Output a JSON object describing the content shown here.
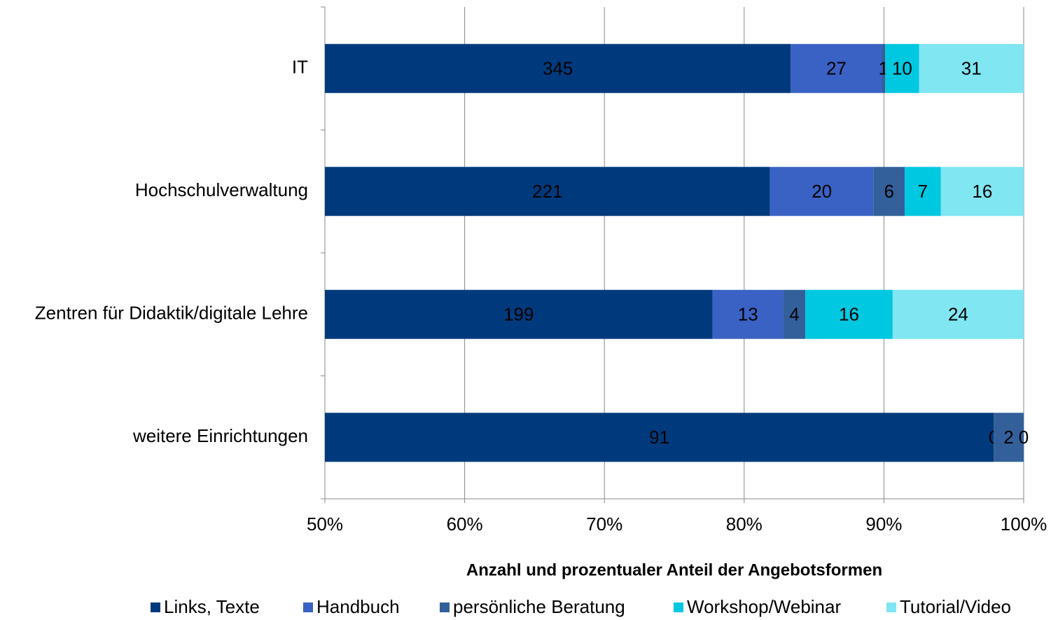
{
  "chart_data": {
    "type": "bar",
    "orientation": "horizontal",
    "stack": "percent",
    "x_label": "Anzahl und prozentualer Anteil der Angebotsformen",
    "categories": [
      "IT",
      "Hochschulverwaltung",
      "Zentren für Didaktik/digitale Lehre",
      "weitere Einrichtungen"
    ],
    "series": [
      {
        "name": "Links, Texte",
        "color": "#003a7d",
        "values": [
          345,
          221,
          199,
          91
        ]
      },
      {
        "name": "Handbuch",
        "color": "#3a62c4",
        "values": [
          27,
          20,
          13,
          0
        ]
      },
      {
        "name": "persönliche Beratung",
        "color": "#33609a",
        "values": [
          1,
          6,
          4,
          2
        ]
      },
      {
        "name": "Workshop/Webinar",
        "color": "#00c8e0",
        "values": [
          10,
          7,
          16,
          0
        ]
      },
      {
        "name": "Tutorial/Video",
        "color": "#7fe6f2",
        "values": [
          31,
          16,
          24,
          null
        ]
      }
    ],
    "xlim": [
      50,
      100
    ],
    "xticks": [
      {
        "value": 50,
        "label": "50%"
      },
      {
        "value": 60,
        "label": "60%"
      },
      {
        "value": 70,
        "label": "70%"
      },
      {
        "value": 80,
        "label": "80%"
      },
      {
        "value": 90,
        "label": "90%"
      },
      {
        "value": 100,
        "label": "100%"
      }
    ],
    "grid": true,
    "legend": "bottom"
  }
}
